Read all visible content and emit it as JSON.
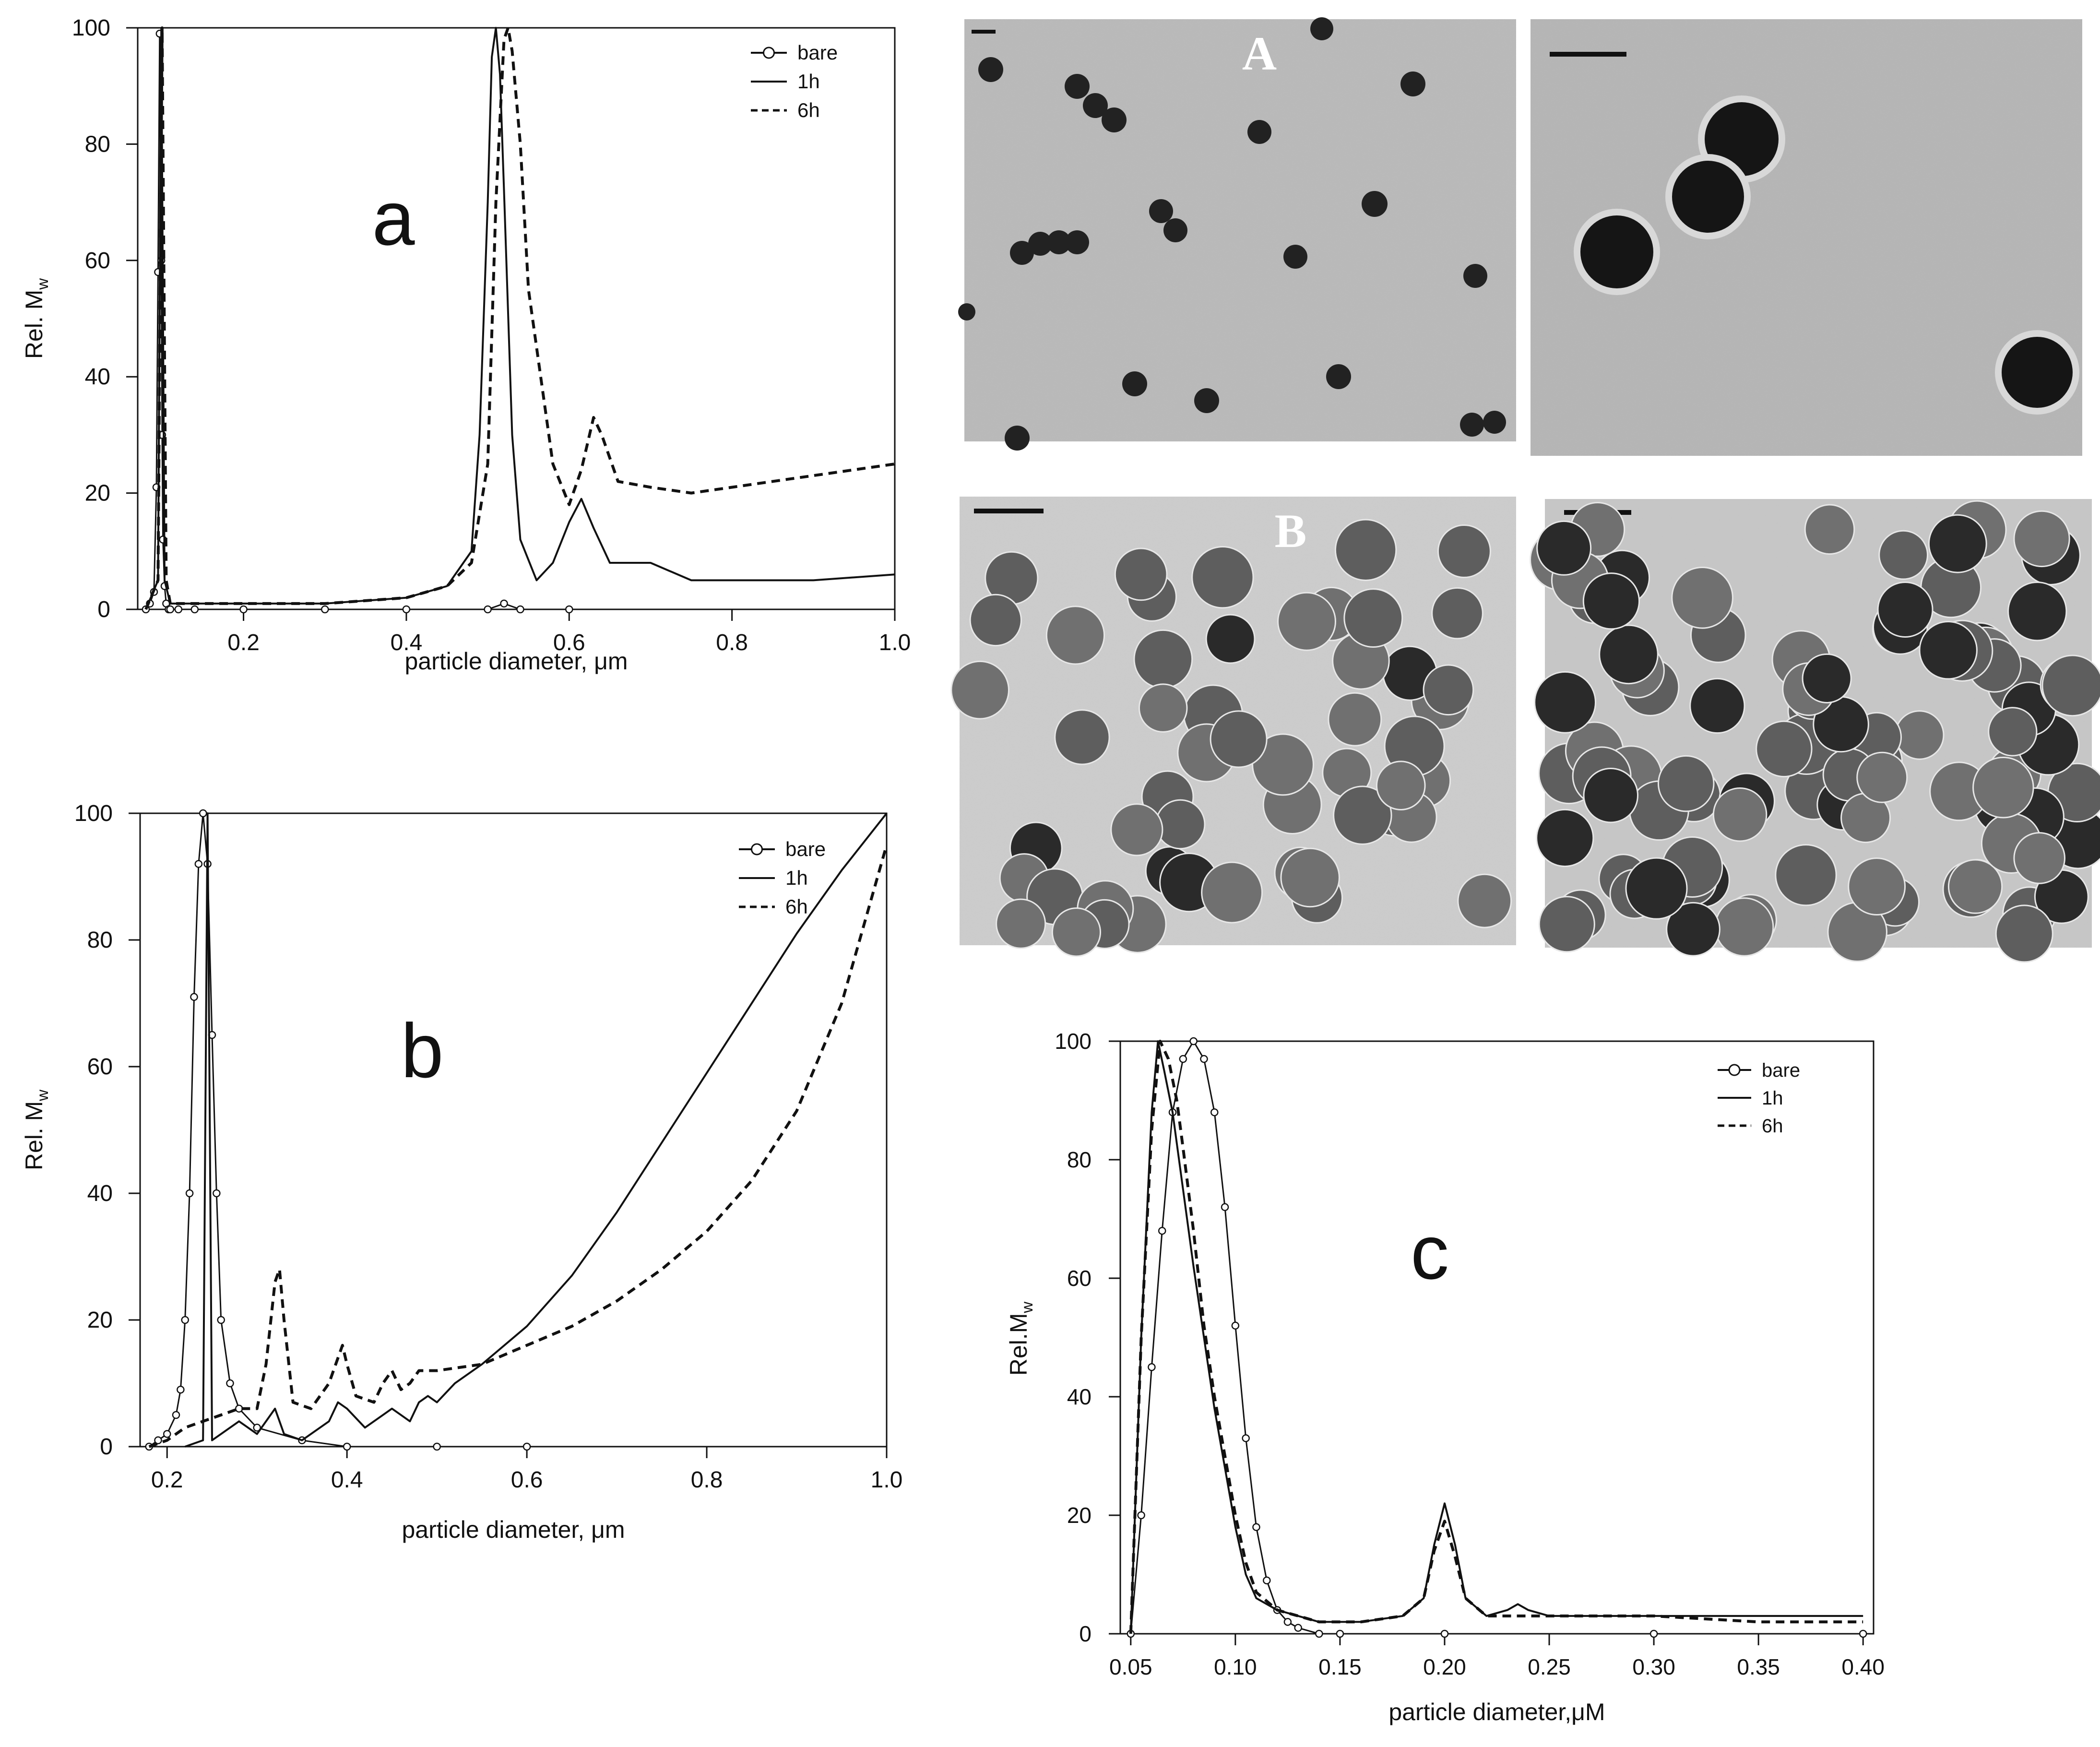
{
  "micrographs": {
    "A": {
      "label": "A"
    },
    "B": {
      "label": "B"
    }
  },
  "chart_data": [
    {
      "id": "a",
      "type": "line",
      "panel_label": "a",
      "xlabel": "particle diameter, μm",
      "ylabel_main": "Rel. M",
      "ylabel_sub": "w",
      "xlim": [
        0.07,
        1.0
      ],
      "ylim": [
        0,
        100
      ],
      "xticks": [
        0.2,
        0.4,
        0.6,
        0.8,
        1.0
      ],
      "xtick_labels": [
        "0.2",
        "0.4",
        "0.6",
        "0.8",
        "1.0"
      ],
      "yticks": [
        0,
        20,
        40,
        60,
        80,
        100
      ],
      "ytick_labels": [
        "0",
        "20",
        "40",
        "60",
        "80",
        "100"
      ],
      "legend_position": "top-right",
      "series": [
        {
          "name": "bare",
          "style": "line-circles",
          "x": [
            0.08,
            0.085,
            0.09,
            0.093,
            0.095,
            0.097,
            0.099,
            0.1,
            0.101,
            0.103,
            0.105,
            0.108,
            0.11,
            0.12,
            0.14,
            0.2,
            0.3,
            0.4,
            0.5,
            0.52,
            0.54,
            0.6
          ],
          "y": [
            0,
            1,
            3,
            21,
            58,
            99,
            60,
            30,
            12,
            4,
            1,
            0,
            0,
            0,
            0,
            0,
            0,
            0,
            0,
            1,
            0,
            0
          ]
        },
        {
          "name": "1h",
          "style": "solid",
          "x": [
            0.08,
            0.095,
            0.099,
            0.103,
            0.11,
            0.2,
            0.3,
            0.4,
            0.45,
            0.48,
            0.49,
            0.5,
            0.505,
            0.51,
            0.515,
            0.52,
            0.53,
            0.54,
            0.56,
            0.58,
            0.6,
            0.615,
            0.63,
            0.65,
            0.7,
            0.75,
            0.8,
            0.9,
            1.0
          ],
          "y": [
            0,
            5,
            100,
            5,
            1,
            1,
            1,
            2,
            4,
            10,
            30,
            70,
            95,
            100,
            92,
            72,
            30,
            12,
            5,
            8,
            15,
            19,
            14,
            8,
            8,
            5,
            5,
            5,
            6
          ]
        },
        {
          "name": "6h",
          "style": "dashed",
          "x": [
            0.08,
            0.095,
            0.1,
            0.105,
            0.11,
            0.2,
            0.3,
            0.4,
            0.45,
            0.48,
            0.5,
            0.51,
            0.52,
            0.525,
            0.53,
            0.54,
            0.55,
            0.58,
            0.6,
            0.615,
            0.63,
            0.64,
            0.66,
            0.7,
            0.75,
            0.8,
            0.9,
            1.0
          ],
          "y": [
            0,
            5,
            100,
            5,
            1,
            1,
            1,
            2,
            4,
            8,
            25,
            70,
            98,
            100,
            96,
            80,
            55,
            25,
            18,
            24,
            33,
            30,
            22,
            21,
            20,
            21,
            23,
            25
          ]
        }
      ]
    },
    {
      "id": "b",
      "type": "line",
      "panel_label": "b",
      "xlabel": "particle diameter, μm",
      "ylabel_main": "Rel. M",
      "ylabel_sub": "w",
      "xlim": [
        0.17,
        1.0
      ],
      "ylim": [
        0,
        100
      ],
      "xticks": [
        0.2,
        0.4,
        0.6,
        0.8,
        1.0
      ],
      "xtick_labels": [
        "0.2",
        "0.4",
        "0.6",
        "0.8",
        "1.0"
      ],
      "yticks": [
        0,
        20,
        40,
        60,
        80,
        100
      ],
      "ytick_labels": [
        "0",
        "20",
        "40",
        "60",
        "80",
        "100"
      ],
      "legend_position": "top-right",
      "series": [
        {
          "name": "bare",
          "style": "line-circles",
          "x": [
            0.18,
            0.19,
            0.2,
            0.21,
            0.215,
            0.22,
            0.225,
            0.23,
            0.235,
            0.24,
            0.245,
            0.25,
            0.255,
            0.26,
            0.27,
            0.28,
            0.3,
            0.35,
            0.4,
            0.5,
            0.6
          ],
          "y": [
            0,
            1,
            2,
            5,
            9,
            20,
            40,
            71,
            92,
            100,
            92,
            65,
            40,
            20,
            10,
            6,
            3,
            1,
            0,
            0,
            0
          ]
        },
        {
          "name": "1h",
          "style": "solid",
          "x": [
            0.22,
            0.24,
            0.245,
            0.25,
            0.26,
            0.28,
            0.3,
            0.31,
            0.32,
            0.33,
            0.35,
            0.38,
            0.39,
            0.4,
            0.42,
            0.44,
            0.45,
            0.46,
            0.47,
            0.48,
            0.49,
            0.5,
            0.52,
            0.55,
            0.6,
            0.65,
            0.7,
            0.75,
            0.8,
            0.85,
            0.9,
            0.95,
            1.0
          ],
          "y": [
            0,
            1,
            100,
            1,
            2,
            4,
            2,
            4,
            6,
            2,
            1,
            4,
            7,
            6,
            3,
            5,
            6,
            5,
            4,
            7,
            8,
            7,
            10,
            13,
            19,
            27,
            37,
            48,
            59,
            70,
            81,
            91,
            100
          ]
        },
        {
          "name": "6h",
          "style": "dashed",
          "x": [
            0.18,
            0.2,
            0.22,
            0.24,
            0.26,
            0.28,
            0.3,
            0.31,
            0.32,
            0.325,
            0.33,
            0.34,
            0.36,
            0.38,
            0.39,
            0.395,
            0.4,
            0.41,
            0.43,
            0.44,
            0.45,
            0.46,
            0.47,
            0.48,
            0.5,
            0.55,
            0.6,
            0.65,
            0.7,
            0.75,
            0.8,
            0.85,
            0.9,
            0.95,
            1.0
          ],
          "y": [
            0,
            1,
            3,
            4,
            5,
            6,
            6,
            13,
            26,
            28,
            20,
            7,
            6,
            10,
            14,
            16,
            13,
            8,
            7,
            10,
            12,
            9,
            10,
            12,
            12,
            13,
            16,
            19,
            23,
            28,
            34,
            42,
            53,
            70,
            95
          ]
        }
      ]
    },
    {
      "id": "c",
      "type": "line",
      "panel_label": "c",
      "xlabel": "particle diameter,μM",
      "ylabel_main": "Rel.M",
      "ylabel_sub": "w",
      "xlim": [
        0.045,
        0.405
      ],
      "ylim": [
        0,
        100
      ],
      "xticks": [
        0.05,
        0.1,
        0.15,
        0.2,
        0.25,
        0.3,
        0.35,
        0.4
      ],
      "xtick_labels": [
        "0.05",
        "0.10",
        "0.15",
        "0.20",
        "0.25",
        "0.30",
        "0.35",
        "0.40"
      ],
      "yticks": [
        0,
        20,
        40,
        60,
        80,
        100
      ],
      "ytick_labels": [
        "0",
        "20",
        "40",
        "60",
        "80",
        "100"
      ],
      "legend_position": "top-right",
      "series": [
        {
          "name": "bare",
          "style": "line-circles",
          "x": [
            0.05,
            0.055,
            0.06,
            0.065,
            0.07,
            0.075,
            0.08,
            0.085,
            0.09,
            0.095,
            0.1,
            0.105,
            0.11,
            0.115,
            0.12,
            0.125,
            0.13,
            0.14,
            0.15,
            0.2,
            0.3,
            0.4
          ],
          "y": [
            0,
            20,
            45,
            68,
            88,
            97,
            100,
            97,
            88,
            72,
            52,
            33,
            18,
            9,
            4,
            2,
            1,
            0,
            0,
            0,
            0,
            0
          ]
        },
        {
          "name": "1h",
          "style": "solid",
          "x": [
            0.05,
            0.055,
            0.06,
            0.063,
            0.066,
            0.07,
            0.075,
            0.08,
            0.085,
            0.09,
            0.095,
            0.1,
            0.105,
            0.11,
            0.12,
            0.13,
            0.14,
            0.15,
            0.16,
            0.18,
            0.19,
            0.195,
            0.2,
            0.205,
            0.21,
            0.22,
            0.23,
            0.235,
            0.24,
            0.25,
            0.3,
            0.35,
            0.4
          ],
          "y": [
            0,
            50,
            88,
            100,
            95,
            88,
            75,
            62,
            50,
            38,
            28,
            18,
            10,
            6,
            4,
            3,
            2,
            2,
            2,
            3,
            6,
            15,
            22,
            15,
            6,
            3,
            4,
            5,
            4,
            3,
            3,
            3,
            3
          ]
        },
        {
          "name": "6h",
          "style": "dashed",
          "x": [
            0.05,
            0.055,
            0.06,
            0.064,
            0.068,
            0.072,
            0.075,
            0.08,
            0.085,
            0.09,
            0.095,
            0.1,
            0.105,
            0.11,
            0.12,
            0.13,
            0.14,
            0.15,
            0.16,
            0.18,
            0.19,
            0.195,
            0.2,
            0.205,
            0.21,
            0.22,
            0.25,
            0.3,
            0.35,
            0.4
          ],
          "y": [
            0,
            50,
            85,
            100,
            97,
            90,
            82,
            68,
            52,
            40,
            30,
            20,
            12,
            7,
            4,
            3,
            2,
            2,
            2,
            3,
            6,
            14,
            19,
            13,
            6,
            3,
            3,
            3,
            2,
            2
          ]
        }
      ]
    }
  ]
}
